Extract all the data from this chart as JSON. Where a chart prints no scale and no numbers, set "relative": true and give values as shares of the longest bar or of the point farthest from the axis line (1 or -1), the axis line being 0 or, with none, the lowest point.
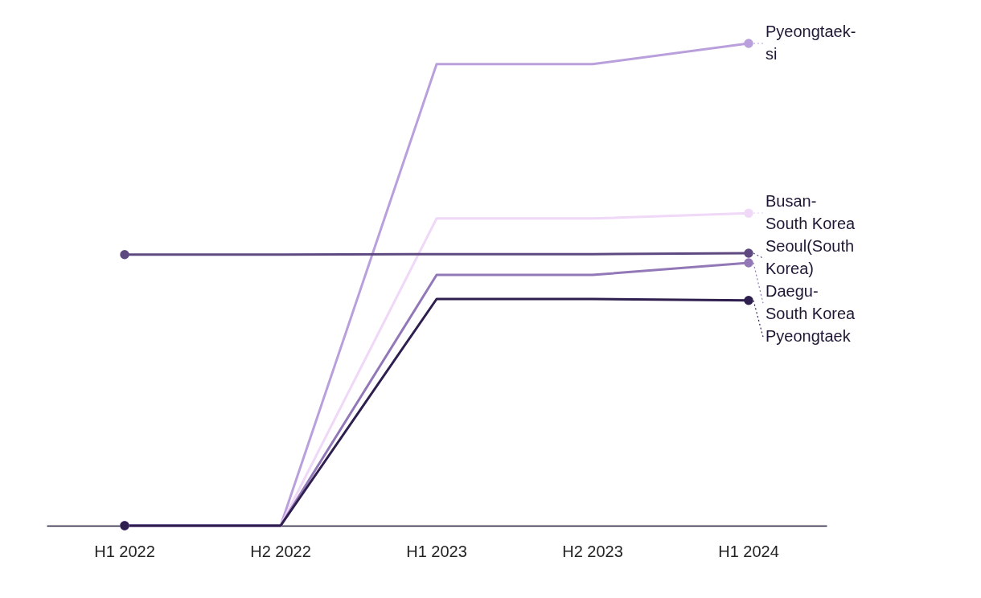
{
  "chart_data": {
    "type": "line",
    "relative": true,
    "categories": [
      "H1 2022",
      "H2 2022",
      "H1 2023",
      "H2 2023",
      "H1 2024"
    ],
    "marker": "none",
    "legend": "right",
    "line_style": "solid",
    "grid": false,
    "series": [
      {
        "name": "Pyeongtaek-si",
        "color": "#b9a0dc",
        "values": [
          0,
          0,
          0.957,
          0.957,
          1
        ]
      },
      {
        "name": "Busan-South Korea",
        "color": "#f0d8f8",
        "values": [
          0,
          0,
          0.637,
          0.637,
          0.648
        ]
      },
      {
        "name": "Seoul(South Korea)",
        "color": "#5e4a80",
        "values": [
          0.562,
          0.562,
          0.563,
          0.563,
          0.565
        ]
      },
      {
        "name": "Daegu-South Korea",
        "color": "#9378b8",
        "values": [
          0,
          0,
          0.52,
          0.52,
          0.545
        ]
      },
      {
        "name": "Pyeongtaek",
        "color": "#2e1f4f",
        "values": [
          0,
          0,
          0.47,
          0.47,
          0.467
        ]
      }
    ]
  }
}
